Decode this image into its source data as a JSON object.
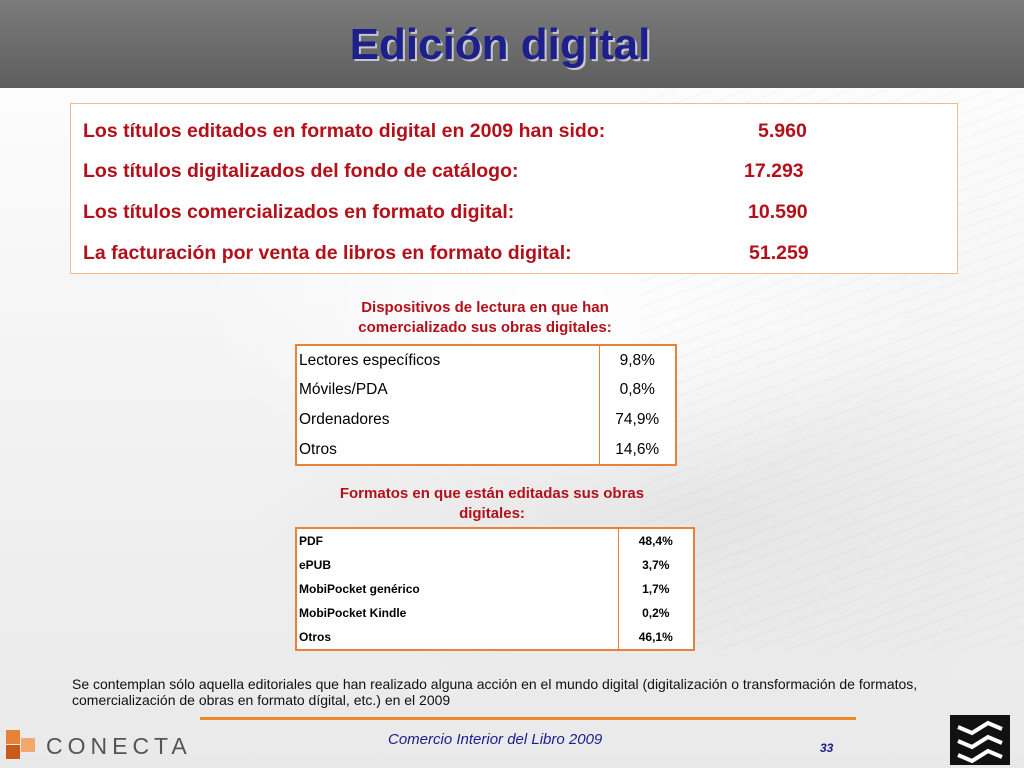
{
  "title": "Edición digital",
  "summary": [
    {
      "label": "Los títulos editados en formato digital en 2009 han sido:",
      "value": "5.960"
    },
    {
      "label": "Los títulos digitalizados del fondo de catálogo:",
      "value": "17.293"
    },
    {
      "label": "Los títulos comercializados en formato digital:",
      "value": "10.590"
    },
    {
      "label": "La facturación por venta de libros en formato digital:",
      "value": "51.259"
    }
  ],
  "devices": {
    "caption_line1": "Dispositivos de lectura en que han",
    "caption_line2": "comercializado sus obras digitales:",
    "rows": [
      {
        "label": "Lectores específicos",
        "value": "9,8%"
      },
      {
        "label": "Móviles/PDA",
        "value": "0,8%"
      },
      {
        "label": "Ordenadores",
        "value": "74,9%"
      },
      {
        "label": "Otros",
        "value": "14,6%"
      }
    ]
  },
  "formats": {
    "caption_line1": "Formatos en que están editadas sus obras",
    "caption_line2": "digitales:",
    "rows": [
      {
        "label": "PDF",
        "value": "48,4%"
      },
      {
        "label": "ePUB",
        "value": "3,7%"
      },
      {
        "label": "MobiPocket genérico",
        "value": "1,7%"
      },
      {
        "label": "MobiPocket Kindle",
        "value": "0,2%"
      },
      {
        "label": "Otros",
        "value": "46,1%"
      }
    ]
  },
  "note": "Se contemplan sólo aquella editoriales que han realizado alguna acción en el mundo digital (digitalización o transformación de formatos, comercialización de obras en formato dígital, etc.) en el 2009",
  "footer": {
    "logo_text": "CONECTA",
    "subtitle": "Comercio Interior del Libro 2009",
    "page": "33"
  },
  "colors": {
    "title": "#1c1f8c",
    "accent_red": "#b3101a",
    "table_border": "#e8823a",
    "footer_line": "#ef8a2c"
  }
}
